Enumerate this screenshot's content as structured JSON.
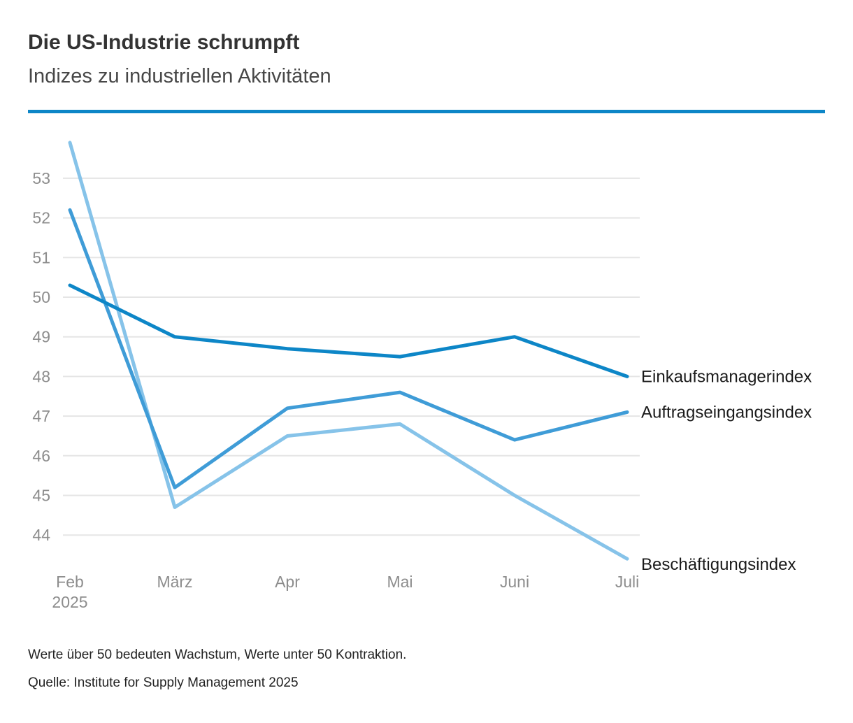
{
  "header": {
    "title": "Die US-Industrie schrumpft",
    "subtitle": "Indizes zu industriellen Aktivitäten"
  },
  "footer": {
    "note": "Werte über 50 bedeuten Wachstum, Werte unter 50 Kontraktion.",
    "source": "Quelle: Institute for Supply Management 2025"
  },
  "colors": {
    "accent_rule": "#0d86c7",
    "grid": "#e5e5e5",
    "axis_text": "#8d8d8d",
    "label_text": "#1b1b1b",
    "title_text": "#333333"
  },
  "chart_data": {
    "type": "line",
    "title": "Die US-Industrie schrumpft",
    "subtitle": "Indizes zu industriellen Aktivitäten",
    "categories": [
      "Feb",
      "März",
      "Apr",
      "Mai",
      "Juni",
      "Juli"
    ],
    "x_sublabel": {
      "index": 0,
      "text": "2025"
    },
    "y_ticks": [
      44,
      45,
      46,
      47,
      48,
      49,
      50,
      51,
      52,
      53
    ],
    "ylim": [
      43.2,
      54.2
    ],
    "grid": "horizontal-only",
    "legend_position": "right-of-line-end",
    "series": [
      {
        "id": "beschaeftigungsindex",
        "name": "Beschäftigungsindex",
        "color": "#86c3e9",
        "values": [
          53.9,
          44.7,
          46.5,
          46.8,
          45.0,
          43.4
        ]
      },
      {
        "id": "auftragseingangsindex",
        "name": "Auftragseingangsindex",
        "color": "#3f9cd7",
        "values": [
          52.2,
          45.2,
          47.2,
          47.6,
          46.4,
          47.1
        ]
      },
      {
        "id": "einkaufsmanagerindex",
        "name": "Einkaufsmanagerindex",
        "color": "#0d86c7",
        "values": [
          50.3,
          49.0,
          48.7,
          48.5,
          49.0,
          48.0
        ]
      }
    ]
  }
}
